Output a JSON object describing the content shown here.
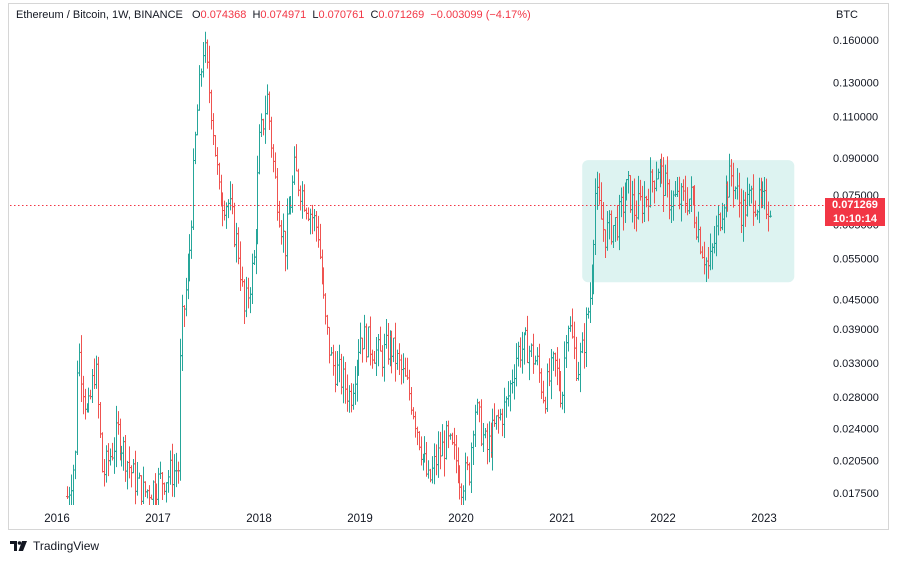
{
  "header": {
    "symbol": "Ethereum / Bitcoin, 1W, BINANCE",
    "o_label": "O",
    "o_value": "0.074368",
    "h_label": "H",
    "h_value": "0.074971",
    "l_label": "L",
    "l_value": "0.070761",
    "c_label": "C",
    "c_value": "0.071269",
    "change": "−0.003099 (−4.17%)"
  },
  "price_badge": {
    "price": "0.071269",
    "countdown": "10:10:14"
  },
  "brand": {
    "name": "TradingView",
    "icon": "tradingview-logo-icon"
  },
  "colors": {
    "up": "#26a69a",
    "down": "#ef5350",
    "last_price": "#f23645",
    "highlight": "#ddf3f1"
  },
  "chart_data": {
    "type": "candlestick",
    "title": "Ethereum / Bitcoin, 1W, BINANCE",
    "unit": "BTC",
    "y_scale": "log",
    "y_ticks": [
      "0.160000",
      "0.130000",
      "0.110000",
      "0.090000",
      "0.075000",
      "0.065000",
      "0.055000",
      "0.045000",
      "0.039000",
      "0.033000",
      "0.028000",
      "0.024000",
      "0.020500",
      "0.017500"
    ],
    "x_ticks": [
      "2016",
      "2017",
      "2018",
      "2019",
      "2020",
      "2021",
      "2022",
      "2023"
    ],
    "last_price": 0.071269,
    "highlight_box": {
      "x_from": 2021.2,
      "x_to": 2023.3,
      "y_from": 0.049,
      "y_to": 0.089
    },
    "series_points": [
      [
        2016.1,
        0.0172
      ],
      [
        2016.18,
        0.021
      ],
      [
        2016.2,
        0.0365
      ],
      [
        2016.3,
        0.025
      ],
      [
        2016.38,
        0.033
      ],
      [
        2016.45,
        0.019
      ],
      [
        2016.6,
        0.0235
      ],
      [
        2016.75,
        0.019
      ],
      [
        2016.85,
        0.0175
      ],
      [
        2017.2,
        0.0198
      ],
      [
        2017.22,
        0.038
      ],
      [
        2017.3,
        0.052
      ],
      [
        2017.38,
        0.108
      ],
      [
        2017.45,
        0.158
      ],
      [
        2017.53,
        0.112
      ],
      [
        2017.6,
        0.075
      ],
      [
        2017.7,
        0.072
      ],
      [
        2017.8,
        0.056
      ],
      [
        2017.85,
        0.042
      ],
      [
        2017.95,
        0.055
      ],
      [
        2018.0,
        0.095
      ],
      [
        2018.08,
        0.121
      ],
      [
        2018.15,
        0.082
      ],
      [
        2018.25,
        0.058
      ],
      [
        2018.35,
        0.084
      ],
      [
        2018.45,
        0.074
      ],
      [
        2018.58,
        0.063
      ],
      [
        2018.65,
        0.041
      ],
      [
        2018.72,
        0.033
      ],
      [
        2018.8,
        0.031
      ],
      [
        2018.9,
        0.028
      ],
      [
        2019.0,
        0.038
      ],
      [
        2019.1,
        0.036
      ],
      [
        2019.2,
        0.034
      ],
      [
        2019.3,
        0.036
      ],
      [
        2019.4,
        0.032
      ],
      [
        2019.5,
        0.028
      ],
      [
        2019.6,
        0.022
      ],
      [
        2019.68,
        0.0182
      ],
      [
        2019.75,
        0.0205
      ],
      [
        2019.85,
        0.0225
      ],
      [
        2019.95,
        0.0205
      ],
      [
        2020.0,
        0.0185
      ],
      [
        2020.08,
        0.0195
      ],
      [
        2020.13,
        0.027
      ],
      [
        2020.25,
        0.0215
      ],
      [
        2020.35,
        0.0245
      ],
      [
        2020.45,
        0.027
      ],
      [
        2020.55,
        0.035
      ],
      [
        2020.65,
        0.036
      ],
      [
        2020.75,
        0.033
      ],
      [
        2020.82,
        0.028
      ],
      [
        2020.92,
        0.033
      ],
      [
        2021.0,
        0.028
      ],
      [
        2021.05,
        0.042
      ],
      [
        2021.15,
        0.032
      ],
      [
        2021.2,
        0.035
      ],
      [
        2021.28,
        0.047
      ],
      [
        2021.33,
        0.076
      ],
      [
        2021.42,
        0.062
      ],
      [
        2021.55,
        0.066
      ],
      [
        2021.65,
        0.078
      ],
      [
        2021.72,
        0.069
      ],
      [
        2021.82,
        0.074
      ],
      [
        2021.95,
        0.087
      ],
      [
        2022.05,
        0.074
      ],
      [
        2022.15,
        0.073
      ],
      [
        2022.28,
        0.074
      ],
      [
        2022.38,
        0.059
      ],
      [
        2022.45,
        0.052
      ],
      [
        2022.52,
        0.062
      ],
      [
        2022.6,
        0.075
      ],
      [
        2022.68,
        0.083
      ],
      [
        2022.78,
        0.069
      ],
      [
        2022.88,
        0.075
      ],
      [
        2022.95,
        0.071
      ],
      [
        2023.05,
        0.072
      ]
    ]
  }
}
